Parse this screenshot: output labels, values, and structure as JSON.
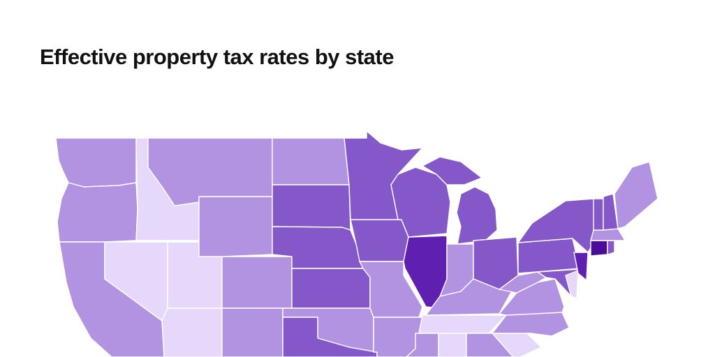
{
  "chart_data": {
    "type": "choropleth",
    "title": "Effective property tax rates by state",
    "scale": {
      "levels": [
        1,
        2,
        3,
        4,
        5
      ],
      "colors": [
        "#e5d8fb",
        "#b293e2",
        "#8458c9",
        "#5f1fb0",
        "#4a0d99"
      ]
    },
    "states": {
      "WA": 2,
      "OR": 2,
      "CA": 2,
      "ID": 1,
      "NV": 1,
      "UT": 1,
      "AZ": 1,
      "MT": 2,
      "WY": 2,
      "CO": 2,
      "NM": 2,
      "ND": 2,
      "SD": 3,
      "NE": 3,
      "KS": 3,
      "OK": 2,
      "TX": 3,
      "MN": 3,
      "IA": 3,
      "MO": 2,
      "AR": 2,
      "LA": 1,
      "WI": 3,
      "IL": 4,
      "MI": 3,
      "IN": 2,
      "OH": 3,
      "KY": 2,
      "TN": 1,
      "MS": 2,
      "AL": 1,
      "GA": 2,
      "SC": 1,
      "NC": 2,
      "VA": 2,
      "WV": 2,
      "PA": 3,
      "NY": 3,
      "MD": 3,
      "DE": 1,
      "NJ": 4,
      "CT": 5,
      "RI": 3,
      "MA": 2,
      "VT": 3,
      "NH": 3,
      "ME": 2
    }
  }
}
